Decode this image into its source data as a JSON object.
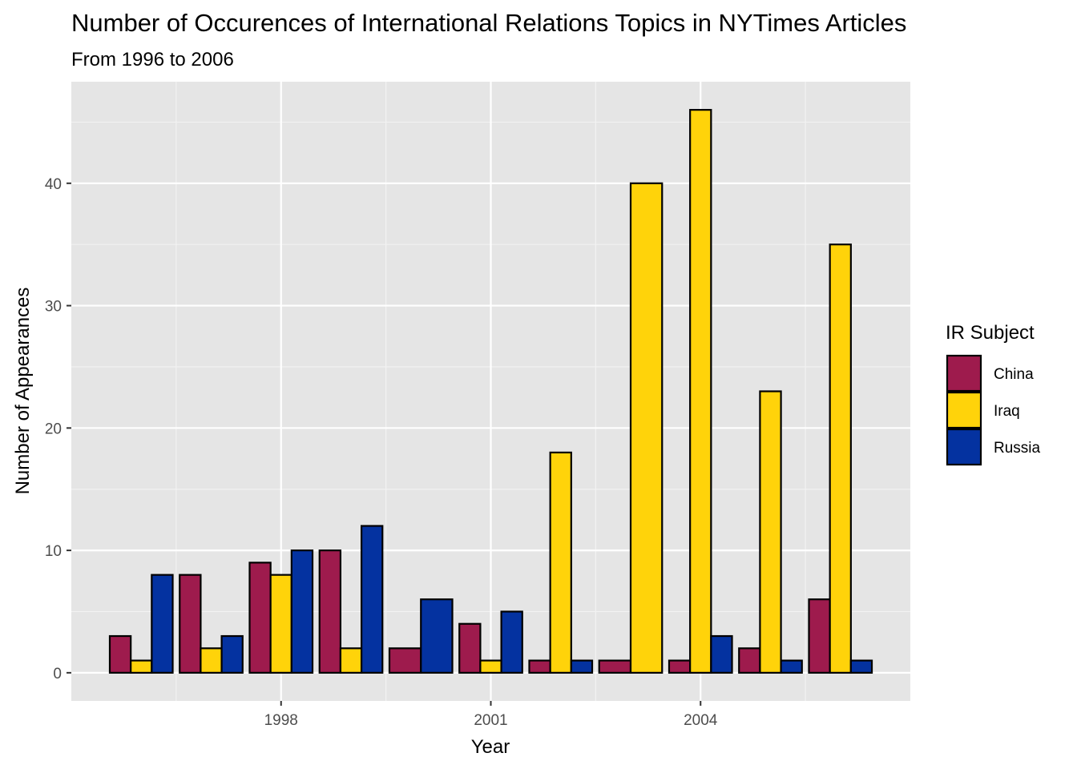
{
  "chart_data": {
    "type": "bar",
    "title": "Number of Occurences of International Relations Topics in NYTimes Articles",
    "subtitle": "From 1996 to 2006",
    "xlabel": "Year",
    "ylabel": "Number of Appearances",
    "x": [
      1996,
      1997,
      1998,
      1999,
      2000,
      2001,
      2002,
      2003,
      2004,
      2005,
      2006
    ],
    "x_ticks": [
      "1998",
      "2001",
      "2004"
    ],
    "x_tick_values": [
      1998,
      2001,
      2004
    ],
    "xlim": [
      1995,
      2007
    ],
    "y_ticks": [
      "0",
      "10",
      "20",
      "30",
      "40"
    ],
    "y_tick_values": [
      0,
      10,
      20,
      30,
      40
    ],
    "ylim": [
      -2.3,
      48.3
    ],
    "grid": true,
    "legend_position": "right",
    "legend_title": "IR Subject",
    "series": [
      {
        "name": "China",
        "color": "#9e1b4d",
        "values": [
          3,
          8,
          9,
          10,
          2,
          4,
          1,
          1,
          1,
          2,
          6
        ]
      },
      {
        "name": "Iraq",
        "color": "#ffd30a",
        "values": [
          1,
          2,
          8,
          2,
          null,
          1,
          18,
          40,
          46,
          23,
          35
        ]
      },
      {
        "name": "Russia",
        "color": "#0432a0",
        "values": [
          8,
          3,
          10,
          12,
          6,
          5,
          1,
          null,
          3,
          1,
          1
        ]
      }
    ],
    "panel_background": "#e5e5e5",
    "bar_outline": "#000000"
  }
}
